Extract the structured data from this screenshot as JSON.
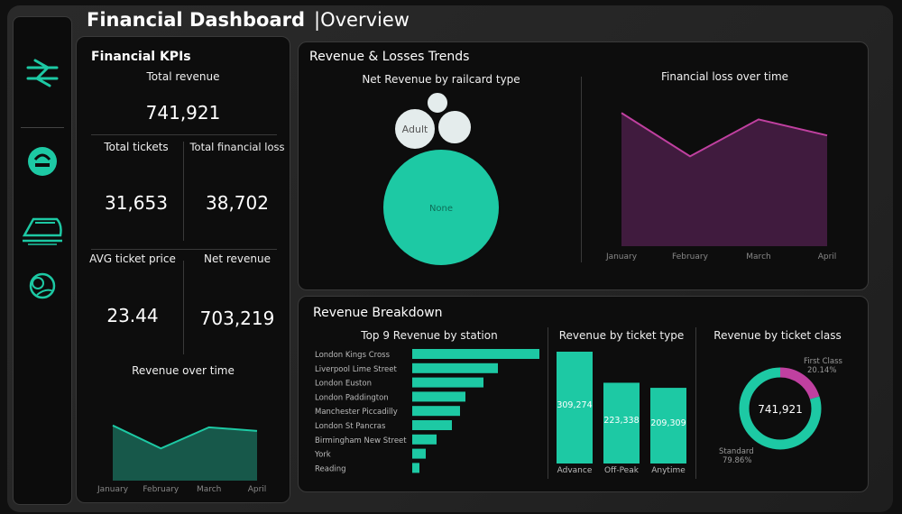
{
  "header": {
    "title": "Financial Dashboard",
    "separator": "|",
    "subtitle": "Overview"
  },
  "sidebar": {
    "items": [
      {
        "icon": "rail-logo-icon"
      },
      {
        "icon": "finance-icon"
      },
      {
        "icon": "train-icon"
      },
      {
        "icon": "globe-icon"
      }
    ]
  },
  "kpis": {
    "title": "Financial KPIs",
    "total_revenue_label": "Total revenue",
    "total_revenue": "741,921",
    "total_tickets_label": "Total tickets",
    "total_tickets": "31,653",
    "total_loss_label": "Total financial loss",
    "total_loss": "38,702",
    "avg_price_label": "AVG ticket price",
    "avg_price": "23.44",
    "net_revenue_label": "Net revenue",
    "net_revenue": "703,219",
    "revenue_over_time_label": "Revenue over time"
  },
  "trends": {
    "title": "Revenue & Losses Trends",
    "railcard_title": "Net Revenue by railcard type",
    "loss_title": "Financial loss over time"
  },
  "breakdown": {
    "title": "Revenue Breakdown",
    "station_title": "Top 9 Revenue by station",
    "ticket_type_title": "Revenue by ticket type",
    "ticket_class_title": "Revenue by ticket class"
  },
  "colors": {
    "teal": "#1dc9a4",
    "magenta": "#c040a0",
    "bubble": "#e4ecec"
  },
  "chart_data": [
    {
      "id": "revenue_over_time",
      "type": "area",
      "categories": [
        "January",
        "February",
        "March",
        "April"
      ],
      "values": [
        0.6,
        0.35,
        0.58,
        0.54
      ],
      "ylim": [
        0,
        1
      ]
    },
    {
      "id": "railcard_bubbles",
      "type": "scatter",
      "labels": [
        "Adult",
        "",
        "",
        "None"
      ],
      "sizes": [
        23,
        12,
        19,
        65
      ]
    },
    {
      "id": "loss_over_time",
      "type": "area",
      "categories": [
        "January",
        "February",
        "March",
        "April"
      ],
      "values": [
        0.83,
        0.56,
        0.79,
        0.69
      ],
      "ylim": [
        0,
        1
      ]
    },
    {
      "id": "revenue_by_station",
      "type": "bar",
      "categories": [
        "London Kings Cross",
        "Liverpool Lime Street",
        "London Euston",
        "London Paddington",
        "Manchester Piccadilly",
        "London St Pancras",
        "Birmingham New Street",
        "York",
        "Reading"
      ],
      "values": [
        141,
        95,
        79,
        59,
        53,
        44,
        27,
        15,
        8
      ]
    },
    {
      "id": "revenue_by_ticket_type",
      "type": "bar",
      "categories": [
        "Advance",
        "Off-Peak",
        "Anytime"
      ],
      "values": [
        309274,
        223338,
        209309
      ],
      "labels": [
        "309,274",
        "223,338",
        "209,309"
      ]
    },
    {
      "id": "revenue_by_ticket_class",
      "type": "pie",
      "center_label": "741,921",
      "slices": [
        {
          "name": "Standard",
          "percent": "79.86%",
          "value": 79.86
        },
        {
          "name": "First Class",
          "percent": "20.14%",
          "value": 20.14
        }
      ]
    }
  ]
}
